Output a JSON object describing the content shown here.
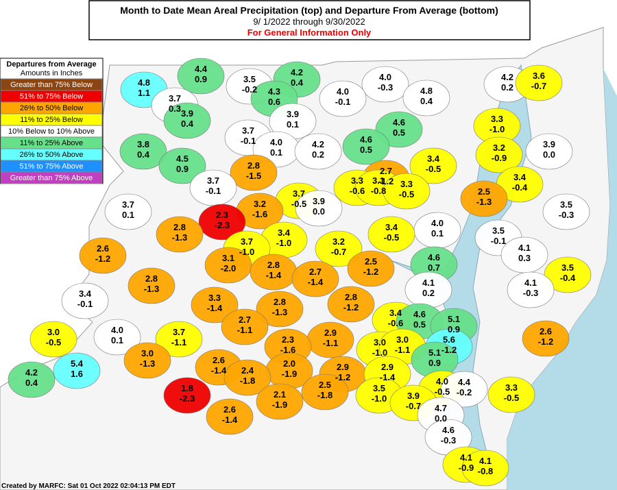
{
  "header": {
    "title": "Month to Date Mean Areal Precipitation (top) and Departure From Average (bottom)",
    "dates": "9/ 1/2022 through  9/30/2022",
    "note": "For General Information Only"
  },
  "legend": {
    "title": "Departures from Average",
    "subtitle": "Amounts in Inches",
    "items": [
      {
        "label": "Greater than 75% Below",
        "color": "#8b4513"
      },
      {
        "label": "51% to 75% Below",
        "color": "#ee0000"
      },
      {
        "label": "26% to 50% Below",
        "color": "#ffa500"
      },
      {
        "label": "11% to 25% Below",
        "color": "#ffff00"
      },
      {
        "label": "10% Below to 10% Above",
        "color": "#ffffff"
      },
      {
        "label": "11% to 25% Above",
        "color": "#66e08a"
      },
      {
        "label": "26% to 50% Above",
        "color": "#66ffff"
      },
      {
        "label": "51% to 75% Above",
        "color": "#1e90ff"
      },
      {
        "label": "Greater than 75% Above",
        "color": "#c040c0"
      }
    ]
  },
  "regions": [
    {
      "precip": "4.8",
      "departure": "1.1"
    },
    {
      "precip": "4.4",
      "departure": "0.9"
    },
    {
      "precip": "3.5",
      "departure": "-0.2"
    },
    {
      "precip": "4.2",
      "departure": "0.4"
    },
    {
      "precip": "3.7",
      "departure": "0.3"
    },
    {
      "precip": "4.3",
      "departure": "0.6"
    },
    {
      "precip": "4.0",
      "departure": "-0.3"
    },
    {
      "precip": "4.8",
      "departure": "0.4"
    },
    {
      "precip": "4.2",
      "departure": "0.2"
    },
    {
      "precip": "3.6",
      "departure": "-0.7"
    },
    {
      "precip": "4.0",
      "departure": "-0.1"
    },
    {
      "precip": "3.9",
      "departure": "0.4"
    },
    {
      "precip": "3.9",
      "departure": "0.1"
    },
    {
      "precip": "3.3",
      "departure": "-1.0"
    },
    {
      "precip": "4.6",
      "departure": "0.5"
    },
    {
      "precip": "3.8",
      "departure": "0.4"
    },
    {
      "precip": "3.7",
      "departure": "-0.1"
    },
    {
      "precip": "4.0",
      "departure": "0.1"
    },
    {
      "precip": "4.2",
      "departure": "0.2"
    },
    {
      "precip": "4.6",
      "departure": "0.5"
    },
    {
      "precip": "3.2",
      "departure": "-0.9"
    },
    {
      "precip": "3.9",
      "departure": "0.0"
    },
    {
      "precip": "4.5",
      "departure": "0.9"
    },
    {
      "precip": "2.8",
      "departure": "-1.5"
    },
    {
      "precip": "2.7",
      "departure": "-1.2"
    },
    {
      "precip": "3.4",
      "departure": "-0.5"
    },
    {
      "precip": "3.4",
      "departure": "-0.4"
    },
    {
      "precip": "3.7",
      "departure": "-0.1"
    },
    {
      "precip": "3.3",
      "departure": "-0.6"
    },
    {
      "precip": "3.1",
      "departure": "-0.8"
    },
    {
      "precip": "3.3",
      "departure": "-0.5"
    },
    {
      "precip": "3.7",
      "departure": "-0.5"
    },
    {
      "precip": "2.5",
      "departure": "-1.3"
    },
    {
      "precip": "3.2",
      "departure": "-1.6"
    },
    {
      "precip": "3.9",
      "departure": "0.0"
    },
    {
      "precip": "3.7",
      "departure": "0.1"
    },
    {
      "precip": "3.5",
      "departure": "-0.3"
    },
    {
      "precip": "2.3",
      "departure": "-2.3"
    },
    {
      "precip": "4.0",
      "departure": "0.1"
    },
    {
      "precip": "3.5",
      "departure": "-0.1"
    },
    {
      "precip": "2.8",
      "departure": "-1.3"
    },
    {
      "precip": "3.4",
      "departure": "-0.5"
    },
    {
      "precip": "3.4",
      "departure": "-1.0"
    },
    {
      "precip": "3.7",
      "departure": "-1.0"
    },
    {
      "precip": "3.2",
      "departure": "-0.7"
    },
    {
      "precip": "2.6",
      "departure": "-1.2"
    },
    {
      "precip": "4.1",
      "departure": "0.3"
    },
    {
      "precip": "4.6",
      "departure": "0.7"
    },
    {
      "precip": "3.1",
      "departure": "-2.0"
    },
    {
      "precip": "2.5",
      "departure": "-1.2"
    },
    {
      "precip": "3.5",
      "departure": "-0.4"
    },
    {
      "precip": "2.8",
      "departure": "-1.4"
    },
    {
      "precip": "2.7",
      "departure": "-1.4"
    },
    {
      "precip": "2.8",
      "departure": "-1.3"
    },
    {
      "precip": "4.1",
      "departure": "0.2"
    },
    {
      "precip": "4.1",
      "departure": "-0.3"
    },
    {
      "precip": "3.4",
      "departure": "-0.1"
    },
    {
      "precip": "3.3",
      "departure": "-1.4"
    },
    {
      "precip": "2.8",
      "departure": "-1.3"
    },
    {
      "precip": "2.8",
      "departure": "-1.2"
    },
    {
      "precip": "3.4",
      "departure": "-0.6"
    },
    {
      "precip": "4.6",
      "departure": "0.5"
    },
    {
      "precip": "5.1",
      "departure": "0.9"
    },
    {
      "precip": "2.7",
      "departure": "-1.1"
    },
    {
      "precip": "4.0",
      "departure": "0.1"
    },
    {
      "precip": "3.0",
      "departure": "-0.5"
    },
    {
      "precip": "3.7",
      "departure": "-1.1"
    },
    {
      "precip": "2.9",
      "departure": "-1.1"
    },
    {
      "precip": "2.6",
      "departure": "-1.2"
    },
    {
      "precip": "2.3",
      "departure": "-1.6"
    },
    {
      "precip": "3.0",
      "departure": "-1.0"
    },
    {
      "precip": "3.0",
      "departure": "-1.1"
    },
    {
      "precip": "5.6",
      "departure": "-1.2"
    },
    {
      "precip": "3.0",
      "departure": "-1.3"
    },
    {
      "precip": "5.4",
      "departure": "1.6"
    },
    {
      "precip": "2.6",
      "departure": "-1.4"
    },
    {
      "precip": "2.0",
      "departure": "-1.9"
    },
    {
      "precip": "5.1",
      "departure": "0.9"
    },
    {
      "precip": "2.4",
      "departure": "-1.8"
    },
    {
      "precip": "2.9",
      "departure": "-1.2"
    },
    {
      "precip": "2.9",
      "departure": "-1.4"
    },
    {
      "precip": "4.2",
      "departure": "0.4"
    },
    {
      "precip": "4.0",
      "departure": "-0.5"
    },
    {
      "precip": "4.4",
      "departure": "-0.2"
    },
    {
      "precip": "2.5",
      "departure": "-1.8"
    },
    {
      "precip": "1.8",
      "departure": "-2.3"
    },
    {
      "precip": "3.5",
      "departure": "-1.0"
    },
    {
      "precip": "3.9",
      "departure": "-0.7"
    },
    {
      "precip": "3.3",
      "departure": "-0.5"
    },
    {
      "precip": "2.1",
      "departure": "-1.9"
    },
    {
      "precip": "4.7",
      "departure": "0.0"
    },
    {
      "precip": "2.6",
      "departure": "-1.4"
    },
    {
      "precip": "4.6",
      "departure": "-0.3"
    },
    {
      "precip": "4.1",
      "departure": "-0.9"
    },
    {
      "precip": "4.1",
      "departure": "-0.8"
    }
  ],
  "footer": "Created by MARFC: Sat 01 Oct 2022 02:04:13 PM EDT"
}
